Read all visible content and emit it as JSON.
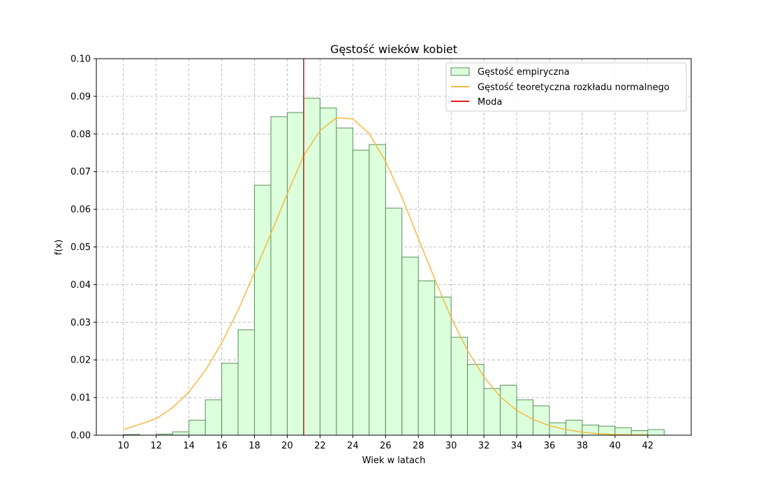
{
  "chart_data": {
    "type": "bar",
    "title": "Gęstość wieków kobiet",
    "xlabel": "Wiek w latach",
    "ylabel": "f(x)",
    "xlim": [
      8.35,
      44.65
    ],
    "ylim": [
      0,
      0.1
    ],
    "grid": true,
    "legend_position": "top-right",
    "x_ticks": [
      10,
      12,
      14,
      16,
      18,
      20,
      22,
      24,
      26,
      28,
      30,
      32,
      34,
      36,
      38,
      40,
      42
    ],
    "x_tick_labels": [
      "10",
      "12",
      "14",
      "16",
      "18",
      "20",
      "22",
      "24",
      "26",
      "28",
      "30",
      "32",
      "34",
      "36",
      "38",
      "40",
      "42"
    ],
    "y_ticks": [
      0,
      0.01,
      0.02,
      0.03,
      0.04,
      0.05,
      0.06,
      0.07,
      0.08,
      0.09,
      0.1
    ],
    "y_tick_labels": [
      "0.00",
      "0.01",
      "0.02",
      "0.03",
      "0.04",
      "0.05",
      "0.06",
      "0.07",
      "0.08",
      "0.09",
      "0.10"
    ],
    "histogram": {
      "name": "Gęstość empiryczna",
      "bin_edges": [
        10,
        11,
        12,
        13,
        14,
        15,
        16,
        17,
        18,
        19,
        20,
        21,
        22,
        23,
        24,
        25,
        26,
        27,
        28,
        29,
        30,
        31,
        32,
        33,
        34,
        35,
        36,
        37,
        38,
        39,
        40,
        41,
        42,
        43
      ],
      "values": [
        0.0002,
        0.0,
        0.0003,
        0.0009,
        0.004,
        0.0094,
        0.0191,
        0.028,
        0.0664,
        0.0846,
        0.0857,
        0.0895,
        0.0869,
        0.0816,
        0.0757,
        0.0772,
        0.0603,
        0.0473,
        0.041,
        0.0367,
        0.026,
        0.0188,
        0.0124,
        0.0133,
        0.0094,
        0.0078,
        0.0033,
        0.004,
        0.0027,
        0.0024,
        0.002,
        0.0012,
        0.0015
      ],
      "fill_color": "#dcffdc",
      "edge_color": "#5a8f5a"
    },
    "normal_curve": {
      "name": "Gęstość teoretyczna rozkładu normalnego",
      "x": [
        10,
        11,
        12,
        13,
        14,
        15,
        16,
        17,
        18,
        19,
        20,
        21,
        22,
        23,
        24,
        25,
        26,
        27,
        28,
        29,
        30,
        31,
        32,
        33,
        34,
        35,
        36,
        37,
        38,
        39,
        40,
        41,
        42
      ],
      "values": [
        0.0015,
        0.0029,
        0.0044,
        0.0073,
        0.0115,
        0.0172,
        0.0245,
        0.0332,
        0.0432,
        0.0535,
        0.0641,
        0.0742,
        0.0809,
        0.0843,
        0.084,
        0.0801,
        0.0727,
        0.0632,
        0.0522,
        0.0415,
        0.0312,
        0.0225,
        0.0155,
        0.0102,
        0.0066,
        0.0042,
        0.0025,
        0.0015,
        0.0008,
        0.0004,
        0.0002,
        0.0001,
        0.0001
      ],
      "color": "#f5b942"
    },
    "mode_line": {
      "name": "Moda",
      "x": 21,
      "color": "#e41a1c"
    },
    "legend": [
      "Gęstość empiryczna",
      "Gęstość teoretyczna rozkładu normalnego",
      "Moda"
    ]
  }
}
